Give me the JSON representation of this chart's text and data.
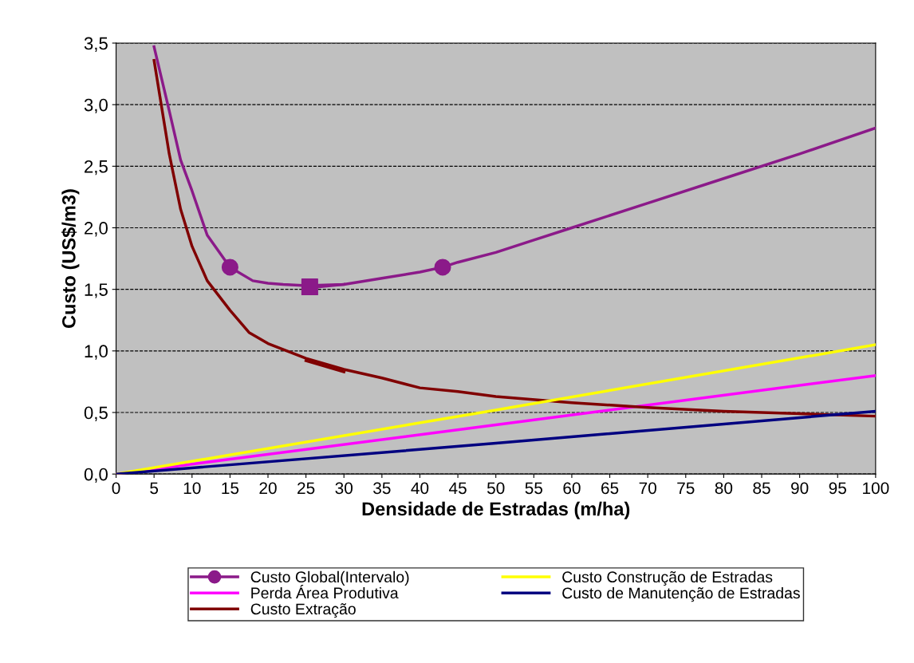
{
  "chart_data": {
    "type": "line",
    "xlabel": "Densidade de Estradas (m/ha)",
    "ylabel": "Custo (US$/m3)",
    "xlim": [
      0,
      100
    ],
    "xticks": [
      0,
      5,
      10,
      15,
      20,
      25,
      30,
      35,
      40,
      45,
      50,
      55,
      60,
      65,
      70,
      75,
      80,
      85,
      90,
      95,
      {
        "value": 100,
        "label": "100"
      }
    ],
    "ylim": [
      0,
      3.5
    ],
    "yticks": [
      {
        "value": 0,
        "label": "0,0"
      },
      {
        "value": 0.5,
        "label": "0,5"
      },
      {
        "value": 1,
        "label": "1,0"
      },
      {
        "value": 1.5,
        "label": "1,5"
      },
      {
        "value": 2,
        "label": "2,0"
      },
      {
        "value": 2.5,
        "label": "2,5"
      },
      {
        "value": 3,
        "label": "3,0"
      },
      {
        "value": 3.5,
        "label": "3,5"
      }
    ],
    "grid": "y",
    "legend": "bottom",
    "series": [
      {
        "color": "#8b1a89",
        "x": [
          5,
          7,
          8.5,
          10,
          12,
          15,
          18,
          20,
          22,
          25,
          30,
          35,
          40,
          43,
          45,
          50,
          55,
          60,
          70,
          80,
          90,
          100
        ],
        "values": [
          3.47,
          2.95,
          2.55,
          2.3,
          1.94,
          1.68,
          1.57,
          1.55,
          1.54,
          1.53,
          1.54,
          1.59,
          1.64,
          1.68,
          1.72,
          1.8,
          1.9,
          2.0,
          2.2,
          2.4,
          2.6,
          2.81
        ]
      },
      {
        "name": "Custo Global(Intervalo)",
        "type": "scatter",
        "marker": "circle",
        "color": "#8b1a89",
        "x": [
          15,
          43
        ],
        "values": [
          1.68,
          1.68
        ]
      },
      {
        "type": "scatter",
        "marker": "square",
        "color": "#8b1a89",
        "x": [
          25.5
        ],
        "values": [
          1.52
        ]
      },
      {
        "color": "#8b1a89",
        "x": [
          25,
          30
        ],
        "values": [
          1.51,
          1.54
        ]
      },
      {
        "name": "Perda Área Produtiva",
        "color": "#ff00ff",
        "x": [
          0,
          50,
          100
        ],
        "values": [
          0,
          0.4,
          0.8
        ]
      },
      {
        "name": "Custo Extração",
        "color": "#800000",
        "x": [
          5,
          7,
          8.5,
          10,
          12,
          15,
          17.5,
          20,
          25,
          30,
          35,
          40,
          45,
          50,
          60,
          70,
          80,
          90,
          100
        ],
        "values": [
          3.36,
          2.6,
          2.15,
          1.85,
          1.57,
          1.33,
          1.15,
          1.06,
          0.94,
          0.85,
          0.78,
          0.7,
          0.67,
          0.63,
          0.58,
          0.54,
          0.51,
          0.49,
          0.47
        ]
      },
      {
        "color": "#800000",
        "x": [
          25,
          30
        ],
        "values": [
          0.92,
          0.83
        ]
      },
      {
        "name": "Custo Construção de Estradas",
        "color": "#ffff00",
        "x": [
          0,
          50,
          100
        ],
        "values": [
          0,
          0.52,
          1.05
        ]
      },
      {
        "name": "Custo de Manutenção de Estradas",
        "color": "#000080",
        "x": [
          0,
          50,
          100
        ],
        "values": [
          0,
          0.25,
          0.51
        ]
      }
    ]
  }
}
